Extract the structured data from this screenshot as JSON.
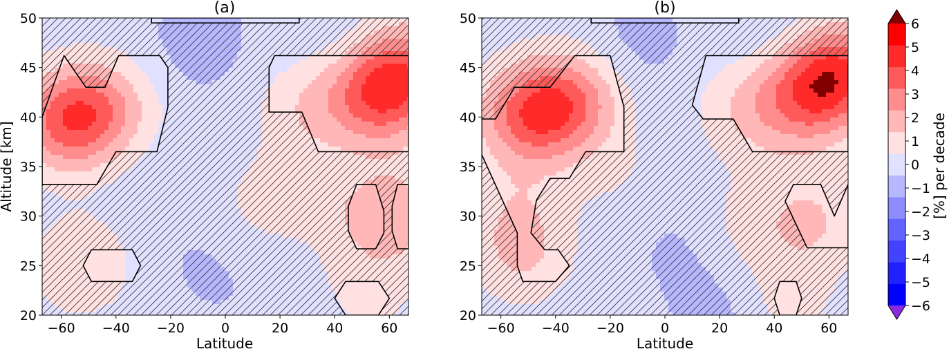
{
  "chart_data": {
    "type": "heatmap",
    "colorbar": {
      "label": "[%] per decade",
      "levels": [
        -6,
        -5,
        -4,
        -3,
        -2,
        -1,
        0,
        1,
        2,
        3,
        4,
        5,
        6
      ],
      "tick_labels": [
        "−6",
        "−5",
        "−4",
        "−3",
        "−2",
        "−1",
        "0",
        "1",
        "2",
        "3",
        "4",
        "5",
        "6"
      ],
      "colors": [
        "#0000ff",
        "#2121ff",
        "#4242ff",
        "#6363ff",
        "#8d8dff",
        "#b7b7ff",
        "#e1e1ff",
        "#ffe1e1",
        "#ffb7b7",
        "#ff8d8d",
        "#ff5a5a",
        "#ff2b2b",
        "#ff0000"
      ],
      "under_color": "#8a2be2",
      "over_color": "#800000",
      "extend": "both"
    },
    "hatching": "diagonal hatch marks regions that are not statistically significant",
    "panels": [
      {
        "title": "(a)",
        "xlabel": "Latitude",
        "ylabel": "Altitude [km]",
        "xlim": [
          -67,
          67
        ],
        "ylim": [
          20,
          50
        ],
        "xticks": [
          -60,
          -40,
          -20,
          0,
          20,
          40,
          60
        ],
        "xtick_labels": [
          "−60",
          "−40",
          "−20",
          "0",
          "20",
          "40",
          "60"
        ],
        "yticks": [
          20,
          25,
          30,
          35,
          40,
          45,
          50
        ],
        "ytick_labels": [
          "20",
          "25",
          "30",
          "35",
          "40",
          "45",
          "50"
        ],
        "blobs": [
          {
            "lat": -10,
            "alt": 47.5,
            "v": -0.8
          },
          {
            "lat": 35,
            "alt": 49.5,
            "v": -0.4
          },
          {
            "lat": -55,
            "alt": 40,
            "v": 3.0
          },
          {
            "lat": -62,
            "alt": 39,
            "v": 1.3
          },
          {
            "lat": -42,
            "alt": 41,
            "v": 1.6
          },
          {
            "lat": 56,
            "alt": 42,
            "v": 3.8
          },
          {
            "lat": 67,
            "alt": 45,
            "v": 2.8
          },
          {
            "lat": 30,
            "alt": 41,
            "v": 1.4
          },
          {
            "lat": 10,
            "alt": 31,
            "v": 0.7
          },
          {
            "lat": 27,
            "alt": 33,
            "v": 0.6
          },
          {
            "lat": 52,
            "alt": 30,
            "v": 1.3
          },
          {
            "lat": 67,
            "alt": 30,
            "v": 1.5
          },
          {
            "lat": -53,
            "alt": 25,
            "v": 1.6
          },
          {
            "lat": 52,
            "alt": 22,
            "v": 0.9
          },
          {
            "lat": 22,
            "alt": 22,
            "v": 0.5
          },
          {
            "lat": -5,
            "alt": 24.5,
            "v": -0.5
          },
          {
            "lat": 22,
            "alt": 20.3,
            "v": -0.7
          },
          {
            "lat": -20,
            "alt": 32,
            "v": -0.3
          }
        ],
        "significant_regions": [
          [
            [
              -67,
              33.2
            ],
            [
              -47,
              33.2
            ],
            [
              -40,
              36.5
            ],
            [
              -25,
              36.5
            ],
            [
              -21,
              41
            ],
            [
              -21,
              45
            ],
            [
              -24,
              46.2
            ],
            [
              -39,
              46.2
            ],
            [
              -44,
              43
            ],
            [
              -48,
              43
            ],
            [
              -51,
              43
            ],
            [
              -59,
              46.2
            ],
            [
              -67,
              40
            ]
          ],
          [
            [
              18,
              46.2
            ],
            [
              67,
              46.2
            ],
            [
              67,
              36.5
            ],
            [
              34,
              36.5
            ],
            [
              28,
              40.5
            ],
            [
              16,
              40.5
            ],
            [
              16,
              45
            ]
          ],
          [
            [
              -49,
              26.6
            ],
            [
              -34,
              26.6
            ],
            [
              -31,
              25
            ],
            [
              -34,
              23.4
            ],
            [
              -49,
              23.4
            ],
            [
              -52,
              25
            ]
          ],
          [
            [
              48,
              33.2
            ],
            [
              55,
              33.2
            ],
            [
              58,
              30.5
            ],
            [
              58,
              28.3
            ],
            [
              55,
              26.7
            ],
            [
              48,
              26.7
            ],
            [
              45,
              28.5
            ],
            [
              45,
              31
            ]
          ],
          [
            [
              63,
              33.2
            ],
            [
              67,
              33.2
            ],
            [
              67,
              26.7
            ],
            [
              63,
              26.7
            ],
            [
              61,
              28.5
            ],
            [
              61,
              31
            ]
          ],
          [
            [
              44,
              23.4
            ],
            [
              56,
              23.4
            ],
            [
              60,
              21.7
            ],
            [
              56,
              20
            ],
            [
              44,
              20
            ],
            [
              40,
              21.7
            ]
          ],
          [
            [
              -27,
              49.5
            ],
            [
              27,
              49.5
            ],
            [
              27,
              50
            ],
            [
              -27,
              50
            ]
          ]
        ]
      },
      {
        "title": "(b)",
        "xlabel": "Latitude",
        "ylabel": "",
        "xlim": [
          -67,
          67
        ],
        "ylim": [
          20,
          50
        ],
        "xticks": [
          -60,
          -40,
          -20,
          0,
          20,
          40,
          60
        ],
        "xtick_labels": [
          "−60",
          "−40",
          "−20",
          "0",
          "20",
          "40",
          "60"
        ],
        "yticks": [
          20,
          25,
          30,
          35,
          40,
          45,
          50
        ],
        "ytick_labels": [
          "20",
          "25",
          "30",
          "35",
          "40",
          "45",
          "50"
        ],
        "blobs": [
          {
            "lat": -10,
            "alt": 47.5,
            "v": -0.7
          },
          {
            "lat": 35,
            "alt": 49.5,
            "v": -0.5
          },
          {
            "lat": -52,
            "alt": 40,
            "v": 2.8
          },
          {
            "lat": -40,
            "alt": 41,
            "v": 2.6
          },
          {
            "lat": -30,
            "alt": 42,
            "v": 1.4
          },
          {
            "lat": 54,
            "alt": 42.5,
            "v": 3.9
          },
          {
            "lat": 67,
            "alt": 45,
            "v": 3.0
          },
          {
            "lat": 30,
            "alt": 41,
            "v": 1.5
          },
          {
            "lat": -55,
            "alt": 31,
            "v": 1.0
          },
          {
            "lat": -52,
            "alt": 26,
            "v": 1.6
          },
          {
            "lat": 55,
            "alt": 29.5,
            "v": 1.6
          },
          {
            "lat": 30,
            "alt": 29,
            "v": 0.9
          },
          {
            "lat": -18,
            "alt": 34,
            "v": 0.6
          },
          {
            "lat": 45,
            "alt": 21.5,
            "v": 1.0
          },
          {
            "lat": 5,
            "alt": 27,
            "v": -0.5
          },
          {
            "lat": 20,
            "alt": 20.3,
            "v": -0.7
          },
          {
            "lat": 42,
            "alt": 37,
            "v": 0.4
          }
        ],
        "significant_regions": [
          [
            [
              -67,
              39.8
            ],
            [
              -62,
              39.8
            ],
            [
              -55,
              43
            ],
            [
              -42,
              43
            ],
            [
              -33,
              46.2
            ],
            [
              -20,
              46.2
            ],
            [
              -15,
              41
            ],
            [
              -15,
              36.5
            ],
            [
              -29,
              36.5
            ],
            [
              -35,
              33.8
            ],
            [
              -42,
              33.8
            ],
            [
              -47,
              31.6
            ],
            [
              -49,
              28.3
            ],
            [
              -44,
              26.6
            ],
            [
              -39,
              26.6
            ],
            [
              -35,
              25
            ],
            [
              -40,
              23.4
            ],
            [
              -52,
              23.4
            ],
            [
              -54,
              25
            ],
            [
              -54,
              28.3
            ],
            [
              -67,
              36.2
            ]
          ],
          [
            [
              15,
              46.2
            ],
            [
              67,
              46.2
            ],
            [
              67,
              36.5
            ],
            [
              32,
              36.5
            ],
            [
              25,
              39.8
            ],
            [
              14,
              39.8
            ],
            [
              10,
              41.2
            ]
          ],
          [
            [
              -27,
              49.5
            ],
            [
              27,
              49.5
            ],
            [
              27,
              50
            ],
            [
              -27,
              50
            ]
          ],
          [
            [
              47,
              33.2
            ],
            [
              57,
              33.2
            ],
            [
              62,
              30
            ],
            [
              67,
              33.2
            ],
            [
              67,
              26.8
            ],
            [
              52,
              26.8
            ],
            [
              44,
              31.5
            ]
          ],
          [
            [
              42,
              23.4
            ],
            [
              48,
              23.4
            ],
            [
              50,
              21.7
            ],
            [
              48,
              20
            ],
            [
              42,
              20
            ],
            [
              40,
              21.7
            ]
          ]
        ]
      }
    ]
  }
}
